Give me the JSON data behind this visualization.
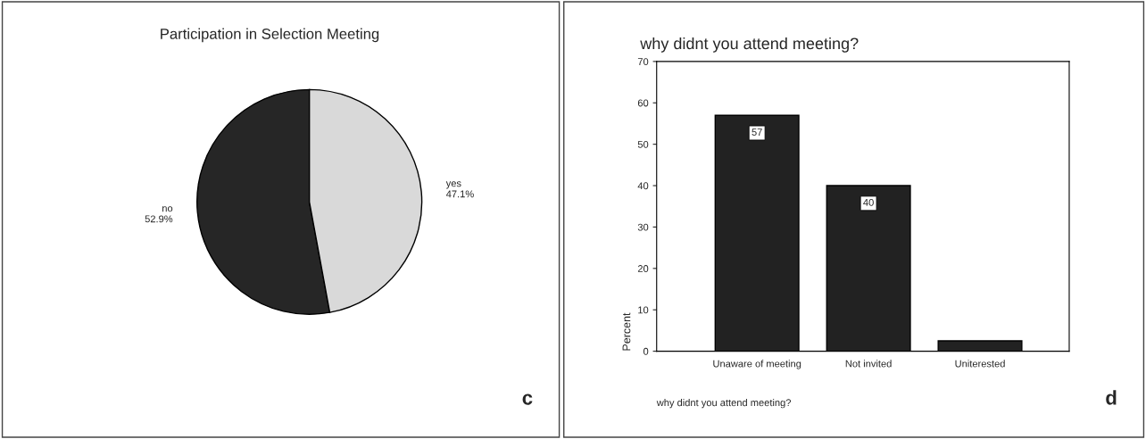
{
  "chart_data": [
    {
      "type": "pie",
      "title": "Participation in Selection Meeting",
      "categories": [
        "no",
        "yes"
      ],
      "values": [
        52.9,
        47.1
      ],
      "colors": [
        "#262626",
        "#d9d9d9"
      ],
      "value_labels": [
        "52.9%",
        "47.1%"
      ],
      "annotations": [
        "c"
      ]
    },
    {
      "type": "bar",
      "title": "why didnt you attend meeting?",
      "xlabel": "why didnt you attend meeting?",
      "ylabel": "Percent",
      "categories": [
        "Unaware of meeting",
        "Not invited",
        "Uniterested"
      ],
      "values": [
        57,
        40,
        2.5
      ],
      "color": "#222222",
      "value_labels": [
        "57",
        "40",
        null
      ],
      "ylim": [
        0,
        70
      ],
      "yticks": [
        0,
        10,
        20,
        30,
        40,
        50,
        60,
        70
      ],
      "grid": false,
      "annotations": [
        "d"
      ]
    }
  ]
}
